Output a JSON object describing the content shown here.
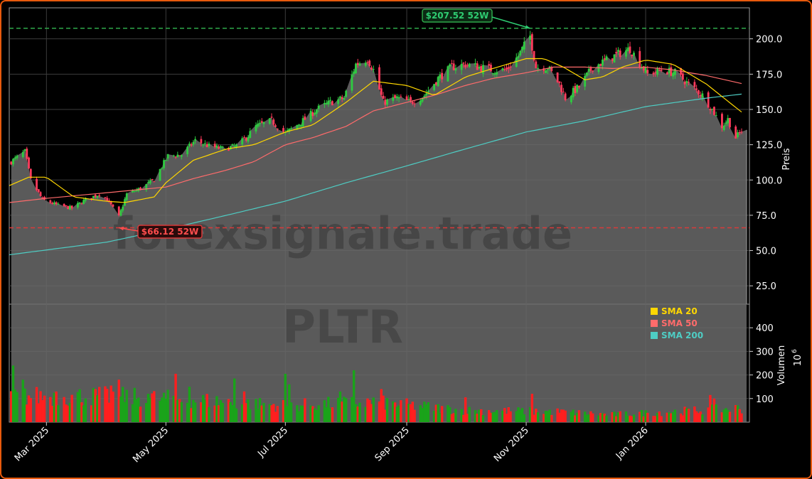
{
  "chart_data": {
    "type": "candlestick",
    "ticker": "PLTR",
    "watermark": "forexsignale.trade",
    "ylabel": "Preis",
    "volume_label": "Volumen",
    "volume_unit": "10",
    "volume_exponent": "6",
    "ylim": [
      12,
      222
    ],
    "volume_ylim": [
      0,
      500
    ],
    "x_range": [
      "2025-02-10",
      "2026-02-23"
    ],
    "x_ticks": [
      {
        "date": "2025-03-01",
        "label": "Mar 2025"
      },
      {
        "date": "2025-05-01",
        "label": "May 2025"
      },
      {
        "date": "2025-07-01",
        "label": "Jul 2025"
      },
      {
        "date": "2025-09-01",
        "label": "Sep 2025"
      },
      {
        "date": "2025-11-01",
        "label": "Nov 2025"
      },
      {
        "date": "2026-01-01",
        "label": "Jan 2026"
      }
    ],
    "y_ticks": [
      "25.0",
      "50.0",
      "75.0",
      "100.0",
      "125.0",
      "150.0",
      "175.0",
      "200.0"
    ],
    "vol_ticks": [
      "100",
      "200",
      "300",
      "400"
    ],
    "grid": true,
    "legend_position": "top-right of volume panel",
    "colors": {
      "up": "#1aa31a",
      "down": "#ff1f1f",
      "sma20": "#ffd700",
      "sma50": "#ff6b6b",
      "sma200": "#4ecdc4",
      "high_line": "#2ea84a",
      "low_line": "#d93a3a"
    },
    "annotations": {
      "high_52w": {
        "label": "$207.52 52W",
        "value": 207.52,
        "date": "2025-11-03"
      },
      "low_52w": {
        "label": "$66.12 52W",
        "value": 66.12,
        "date": "2025-04-07"
      }
    },
    "last_close": 135.5,
    "price_anchors": [
      [
        "2025-02-10",
        112
      ],
      [
        "2025-02-18",
        120
      ],
      [
        "2025-02-21",
        100
      ],
      [
        "2025-02-27",
        86
      ],
      [
        "2025-03-07",
        82
      ],
      [
        "2025-03-14",
        80
      ],
      [
        "2025-03-21",
        86
      ],
      [
        "2025-03-28",
        90
      ],
      [
        "2025-04-01",
        86
      ],
      [
        "2025-04-07",
        74
      ],
      [
        "2025-04-11",
        90
      ],
      [
        "2025-04-18",
        94
      ],
      [
        "2025-04-25",
        100
      ],
      [
        "2025-05-02",
        117
      ],
      [
        "2025-05-09",
        118
      ],
      [
        "2025-05-16",
        128
      ],
      [
        "2025-05-23",
        124
      ],
      [
        "2025-05-30",
        122
      ],
      [
        "2025-06-06",
        124
      ],
      [
        "2025-06-11",
        130
      ],
      [
        "2025-06-16",
        138
      ],
      [
        "2025-06-24",
        142
      ],
      [
        "2025-07-01",
        133
      ],
      [
        "2025-07-10",
        142
      ],
      [
        "2025-07-17",
        150
      ],
      [
        "2025-07-24",
        155
      ],
      [
        "2025-07-31",
        158
      ],
      [
        "2025-08-06",
        182
      ],
      [
        "2025-08-12",
        186
      ],
      [
        "2025-08-15",
        178
      ],
      [
        "2025-08-20",
        155
      ],
      [
        "2025-08-27",
        158
      ],
      [
        "2025-09-03",
        155
      ],
      [
        "2025-09-10",
        160
      ],
      [
        "2025-09-17",
        172
      ],
      [
        "2025-09-24",
        180
      ],
      [
        "2025-10-01",
        182
      ],
      [
        "2025-10-08",
        180
      ],
      [
        "2025-10-15",
        178
      ],
      [
        "2025-10-22",
        178
      ],
      [
        "2025-10-28",
        188
      ],
      [
        "2025-11-03",
        202
      ],
      [
        "2025-11-06",
        180
      ],
      [
        "2025-11-12",
        180
      ],
      [
        "2025-11-18",
        168
      ],
      [
        "2025-11-21",
        158
      ],
      [
        "2025-11-28",
        166
      ],
      [
        "2025-12-05",
        180
      ],
      [
        "2025-12-12",
        185
      ],
      [
        "2025-12-19",
        190
      ],
      [
        "2025-12-24",
        193
      ],
      [
        "2026-01-02",
        175
      ],
      [
        "2026-01-09",
        178
      ],
      [
        "2026-01-16",
        176
      ],
      [
        "2026-01-23",
        168
      ],
      [
        "2026-01-30",
        160
      ],
      [
        "2026-02-04",
        150
      ],
      [
        "2026-02-09",
        138
      ],
      [
        "2026-02-12",
        143
      ],
      [
        "2026-02-16",
        130
      ],
      [
        "2026-02-19",
        135
      ]
    ],
    "sma20": [
      [
        "2025-02-10",
        96
      ],
      [
        "2025-02-20",
        102
      ],
      [
        "2025-03-01",
        102
      ],
      [
        "2025-03-15",
        88
      ],
      [
        "2025-03-31",
        85
      ],
      [
        "2025-04-10",
        84
      ],
      [
        "2025-04-25",
        88
      ],
      [
        "2025-05-01",
        98
      ],
      [
        "2025-05-15",
        114
      ],
      [
        "2025-06-01",
        122
      ],
      [
        "2025-06-15",
        125
      ],
      [
        "2025-07-01",
        134
      ],
      [
        "2025-07-15",
        139
      ],
      [
        "2025-08-01",
        155
      ],
      [
        "2025-08-15",
        170
      ],
      [
        "2025-09-01",
        167
      ],
      [
        "2025-09-15",
        160
      ],
      [
        "2025-10-01",
        173
      ],
      [
        "2025-10-15",
        179
      ],
      [
        "2025-11-01",
        186
      ],
      [
        "2025-11-10",
        186
      ],
      [
        "2025-11-20",
        180
      ],
      [
        "2025-12-01",
        171
      ],
      [
        "2025-12-10",
        173
      ],
      [
        "2025-12-20",
        180
      ],
      [
        "2026-01-01",
        185
      ],
      [
        "2026-01-15",
        182
      ],
      [
        "2026-02-01",
        168
      ],
      [
        "2026-02-20",
        147
      ]
    ],
    "sma50": [
      [
        "2025-02-10",
        84
      ],
      [
        "2025-03-01",
        87
      ],
      [
        "2025-04-01",
        91
      ],
      [
        "2025-05-01",
        95
      ],
      [
        "2025-05-15",
        101
      ],
      [
        "2025-06-01",
        107
      ],
      [
        "2025-06-15",
        113
      ],
      [
        "2025-07-01",
        125
      ],
      [
        "2025-07-15",
        130
      ],
      [
        "2025-08-01",
        138
      ],
      [
        "2025-08-15",
        149
      ],
      [
        "2025-09-01",
        155
      ],
      [
        "2025-09-15",
        160
      ],
      [
        "2025-10-01",
        167
      ],
      [
        "2025-10-15",
        172
      ],
      [
        "2025-11-01",
        176
      ],
      [
        "2025-11-15",
        180
      ],
      [
        "2025-12-01",
        180
      ],
      [
        "2025-12-15",
        179
      ],
      [
        "2026-01-01",
        180
      ],
      [
        "2026-01-15",
        178
      ],
      [
        "2026-02-01",
        174
      ],
      [
        "2026-02-20",
        168
      ]
    ],
    "sma200": [
      [
        "2025-02-10",
        47
      ],
      [
        "2025-04-01",
        56
      ],
      [
        "2025-05-01",
        65
      ],
      [
        "2025-06-01",
        75
      ],
      [
        "2025-07-01",
        85
      ],
      [
        "2025-08-01",
        98
      ],
      [
        "2025-09-01",
        110
      ],
      [
        "2025-10-01",
        122
      ],
      [
        "2025-11-01",
        134
      ],
      [
        "2025-12-01",
        142
      ],
      [
        "2026-01-01",
        152
      ],
      [
        "2026-02-01",
        158
      ],
      [
        "2026-02-20",
        161
      ]
    ],
    "series": [
      {
        "name": "SMA 20",
        "color": "#ffd700"
      },
      {
        "name": "SMA 50",
        "color": "#ff6b6b"
      },
      {
        "name": "SMA 200",
        "color": "#4ecdc4"
      }
    ],
    "volume_spikes": [
      [
        "2025-02-12",
        240
      ],
      [
        "2025-02-10",
        150
      ],
      [
        "2025-02-17",
        180
      ],
      [
        "2025-03-06",
        130
      ],
      [
        "2025-04-07",
        180
      ],
      [
        "2025-04-03",
        155
      ],
      [
        "2025-04-22",
        120
      ],
      [
        "2025-05-06",
        205
      ],
      [
        "2025-05-13",
        150
      ],
      [
        "2025-06-05",
        185
      ],
      [
        "2025-06-10",
        130
      ],
      [
        "2025-07-01",
        205
      ],
      [
        "2025-07-03",
        160
      ],
      [
        "2025-08-05",
        220
      ],
      [
        "2025-08-19",
        140
      ],
      [
        "2025-07-29",
        130
      ],
      [
        "2025-10-01",
        105
      ],
      [
        "2025-11-04",
        120
      ],
      [
        "2026-02-03",
        115
      ],
      [
        "2026-02-05",
        100
      ]
    ],
    "volume_baseline": [
      [
        "2025-02-10",
        110
      ],
      [
        "2025-04-01",
        110
      ],
      [
        "2025-05-15",
        95
      ],
      [
        "2025-07-01",
        70
      ],
      [
        "2025-08-15",
        85
      ],
      [
        "2025-10-01",
        50
      ],
      [
        "2025-11-15",
        45
      ],
      [
        "2025-12-15",
        32
      ],
      [
        "2026-01-15",
        45
      ],
      [
        "2026-02-20",
        60
      ]
    ]
  }
}
